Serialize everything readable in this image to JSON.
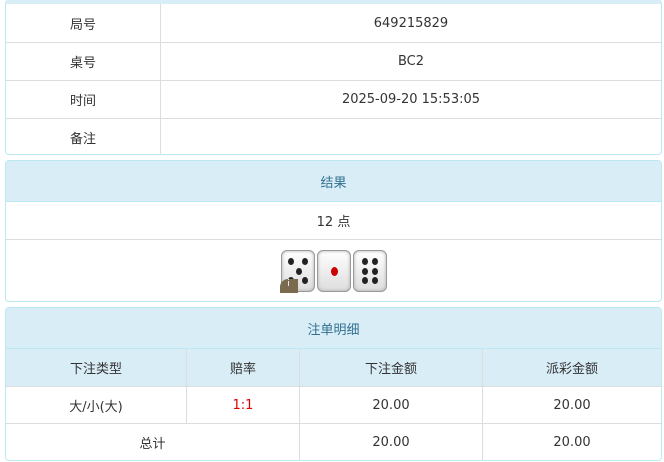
{
  "info": {
    "rows": [
      {
        "label": "局号",
        "value": "649215829"
      },
      {
        "label": "桌号",
        "value": "BC2"
      },
      {
        "label": "时间",
        "value": "2025-09-20 15:53:05"
      },
      {
        "label": "备注",
        "value": ""
      }
    ]
  },
  "result": {
    "title": "结果",
    "points": "12 点",
    "dice": [
      5,
      1,
      6
    ],
    "info_icon": "i"
  },
  "bets": {
    "title": "注单明细",
    "headers": [
      "下注类型",
      "赔率",
      "下注金额",
      "派彩金额"
    ],
    "rows": [
      {
        "type": "大/小(大)",
        "odds": "1:1",
        "amount": "20.00",
        "payout": "20.00"
      }
    ],
    "total": {
      "label": "总计",
      "amount": "20.00",
      "payout": "20.00"
    }
  },
  "colors": {
    "header_bg": "#d9edf7",
    "header_text": "#31708f",
    "odds": "#dd0000"
  }
}
